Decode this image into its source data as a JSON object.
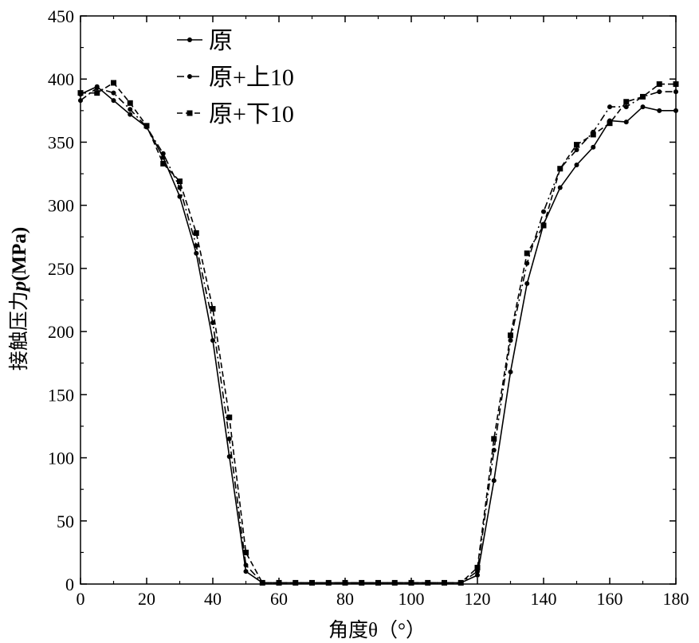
{
  "chart_data": {
    "type": "line",
    "title": "",
    "xlabel": "角度θ（°）",
    "ylabel": "接触压力",
    "ylabel_symbol": "p",
    "ylabel_unit": "(MPa)",
    "xlim": [
      0,
      180
    ],
    "ylim": [
      0,
      450
    ],
    "xticks": [
      0,
      20,
      40,
      60,
      80,
      100,
      120,
      140,
      160,
      180
    ],
    "yticks": [
      0,
      50,
      100,
      150,
      200,
      250,
      300,
      350,
      400,
      450
    ],
    "grid": false,
    "legend_position": "top-left",
    "x": [
      0,
      5,
      10,
      15,
      20,
      25,
      30,
      35,
      40,
      45,
      50,
      55,
      60,
      65,
      70,
      75,
      80,
      85,
      90,
      95,
      100,
      105,
      110,
      115,
      120,
      125,
      130,
      135,
      140,
      145,
      150,
      155,
      160,
      165,
      170,
      175,
      180
    ],
    "series": [
      {
        "name": "原",
        "line_style": "solid",
        "marker": "circle",
        "values": [
          388,
          394,
          383,
          372,
          362,
          338,
          307,
          262,
          193,
          101,
          10,
          1,
          1,
          1,
          1,
          1,
          1,
          1,
          1,
          1,
          1,
          1,
          1,
          1,
          7,
          82,
          168,
          238,
          285,
          314,
          332,
          346,
          367,
          366,
          378,
          375,
          375
        ]
      },
      {
        "name": "原+上10",
        "line_style": "dashdot",
        "marker": "circle",
        "values": [
          383,
          393,
          389,
          376,
          362,
          341,
          314,
          268,
          207,
          115,
          15,
          1,
          1,
          1,
          1,
          1,
          1,
          1,
          1,
          1,
          1,
          1,
          1,
          1,
          10,
          106,
          193,
          254,
          295,
          329,
          344,
          358,
          378,
          378,
          386,
          390,
          390
        ]
      },
      {
        "name": "原+下10",
        "line_style": "dashed",
        "marker": "square",
        "values": [
          389,
          389,
          397,
          381,
          363,
          333,
          319,
          278,
          218,
          132,
          25,
          1,
          1,
          1,
          1,
          1,
          1,
          1,
          1,
          1,
          1,
          1,
          1,
          1,
          13,
          115,
          197,
          262,
          284,
          329,
          348,
          356,
          365,
          382,
          386,
          396,
          396
        ]
      }
    ]
  }
}
